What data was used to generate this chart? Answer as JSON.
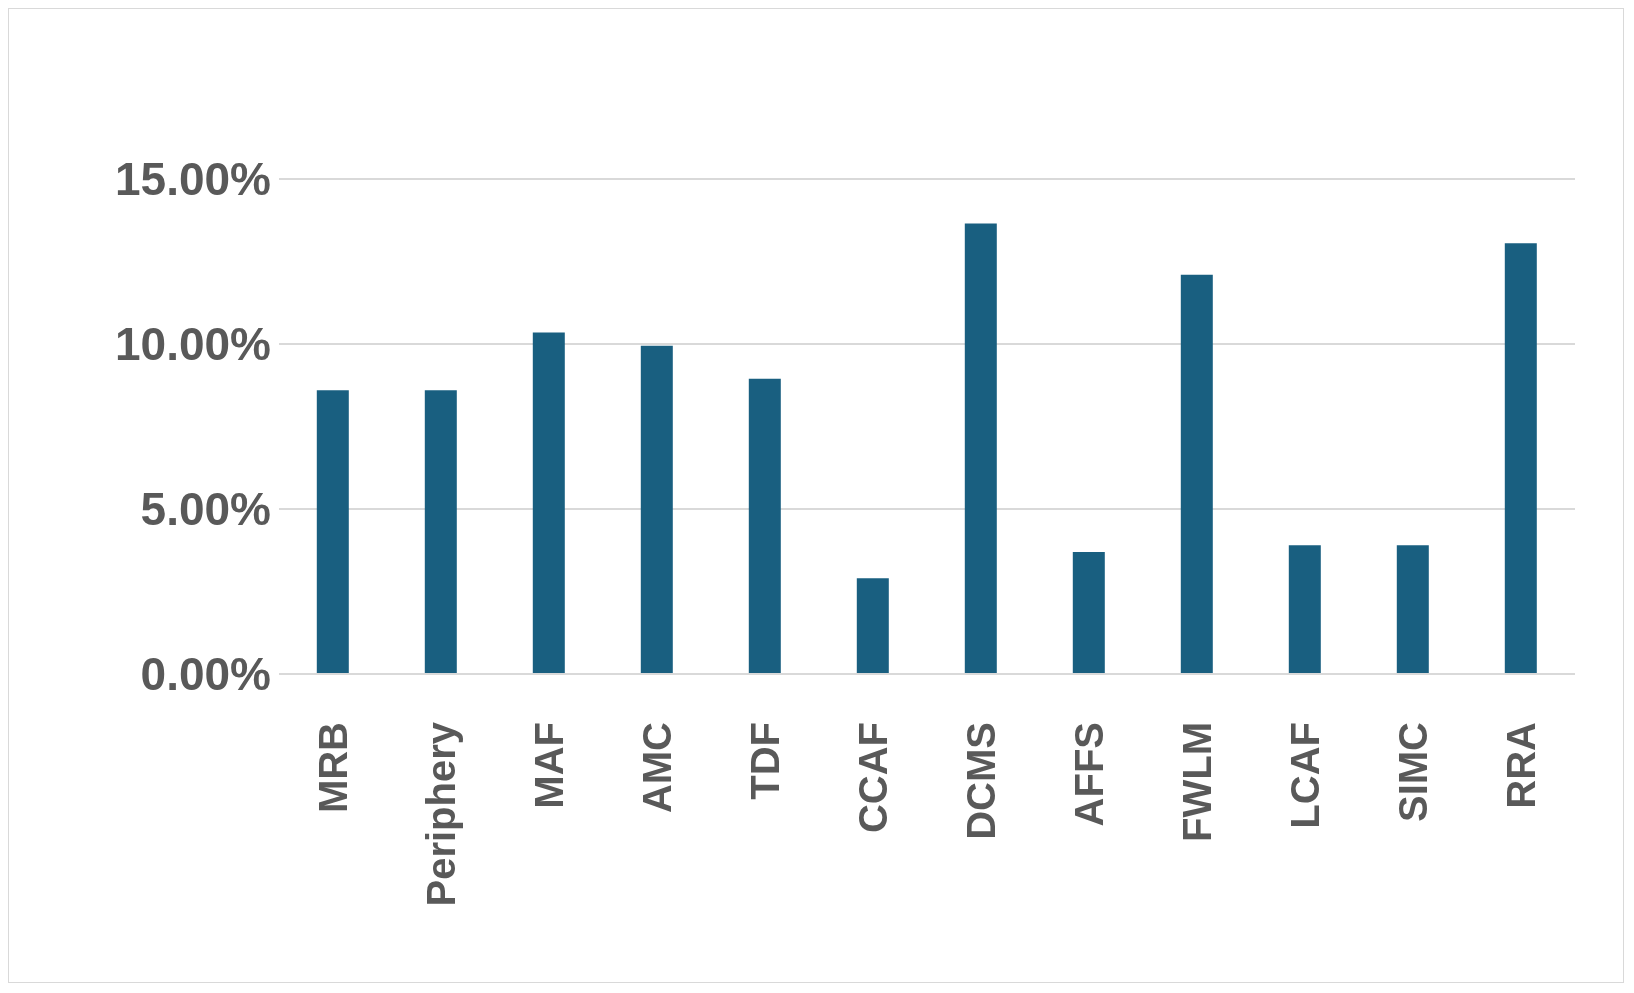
{
  "chart_data": {
    "type": "bar",
    "categories": [
      "MRB",
      "Periphery",
      "MAF",
      "AMC",
      "TDF",
      "CCAF",
      "DCMS",
      "AFFS",
      "FWLM",
      "LCAF",
      "SIMC",
      "RRA"
    ],
    "values": [
      8.6,
      8.6,
      10.35,
      9.95,
      8.95,
      2.9,
      13.65,
      3.7,
      12.1,
      3.9,
      3.9,
      13.05
    ],
    "color": "#195f80",
    "ylim": [
      0,
      15
    ],
    "yticks": [
      {
        "value": 0,
        "label": "0.00%"
      },
      {
        "value": 5,
        "label": "5.00%"
      },
      {
        "value": 10,
        "label": "10.00%"
      },
      {
        "value": 15,
        "label": "15.00%"
      }
    ],
    "grid": "y"
  }
}
